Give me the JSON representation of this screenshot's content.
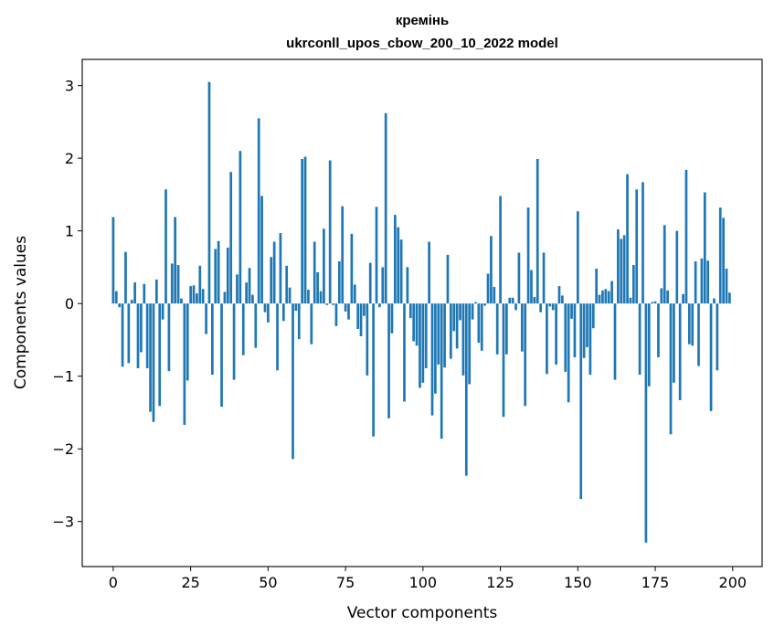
{
  "chart_data": {
    "type": "bar",
    "title": "кремінь",
    "subtitle": "ukrconll_upos_cbow_200_10_2022 model",
    "xlabel": "Vector components",
    "ylabel": "Components values",
    "xlim": [
      -10,
      209.5
    ],
    "ylim": [
      -3.62,
      3.36
    ],
    "xticks": [
      0,
      25,
      50,
      75,
      100,
      125,
      150,
      175,
      200
    ],
    "yticks": [
      -3,
      -2,
      -1,
      0,
      1,
      2,
      3
    ],
    "xtick_labels": [
      "0",
      "25",
      "50",
      "75",
      "100",
      "125",
      "150",
      "175",
      "200"
    ],
    "ytick_labels": [
      "−3",
      "−2",
      "−1",
      "0",
      "1",
      "2",
      "3"
    ],
    "grid": false,
    "legend": "none",
    "bar_color": "#1f77b4",
    "x": [
      0,
      1,
      2,
      3,
      4,
      5,
      6,
      7,
      8,
      9,
      10,
      11,
      12,
      13,
      14,
      15,
      16,
      17,
      18,
      19,
      20,
      21,
      22,
      23,
      24,
      25,
      26,
      27,
      28,
      29,
      30,
      31,
      32,
      33,
      34,
      35,
      36,
      37,
      38,
      39,
      40,
      41,
      42,
      43,
      44,
      45,
      46,
      47,
      48,
      49,
      50,
      51,
      52,
      53,
      54,
      55,
      56,
      57,
      58,
      59,
      60,
      61,
      62,
      63,
      64,
      65,
      66,
      67,
      68,
      69,
      70,
      71,
      72,
      73,
      74,
      75,
      76,
      77,
      78,
      79,
      80,
      81,
      82,
      83,
      84,
      85,
      86,
      87,
      88,
      89,
      90,
      91,
      92,
      93,
      94,
      95,
      96,
      97,
      98,
      99,
      100,
      101,
      102,
      103,
      104,
      105,
      106,
      107,
      108,
      109,
      110,
      111,
      112,
      113,
      114,
      115,
      116,
      117,
      118,
      119,
      120,
      121,
      122,
      123,
      124,
      125,
      126,
      127,
      128,
      129,
      130,
      131,
      132,
      133,
      134,
      135,
      136,
      137,
      138,
      139,
      140,
      141,
      142,
      143,
      144,
      145,
      146,
      147,
      148,
      149,
      150,
      151,
      152,
      153,
      154,
      155,
      156,
      157,
      158,
      159,
      160,
      161,
      162,
      163,
      164,
      165,
      166,
      167,
      168,
      169,
      170,
      171,
      172,
      173,
      174,
      175,
      176,
      177,
      178,
      179,
      180,
      181,
      182,
      183,
      184,
      185,
      186,
      187,
      188,
      189,
      190,
      191,
      192,
      193,
      194,
      195,
      196,
      197,
      198,
      199
    ],
    "values": [
      1.19,
      0.17,
      -0.05,
      -0.87,
      0.71,
      -0.82,
      0.05,
      0.29,
      -0.89,
      -0.67,
      0.27,
      -0.89,
      -1.49,
      -1.63,
      0.33,
      -1.41,
      -0.22,
      1.57,
      -0.93,
      0.55,
      1.19,
      0.53,
      0.07,
      -1.67,
      -1.06,
      0.24,
      0.25,
      0.14,
      0.52,
      0.2,
      -0.42,
      3.05,
      -0.98,
      0.75,
      0.86,
      -1.42,
      0.16,
      0.77,
      1.81,
      -1.05,
      0.4,
      2.1,
      -0.71,
      0.29,
      0.49,
      0.12,
      -0.61,
      2.55,
      1.48,
      -0.12,
      -0.26,
      0.64,
      0.85,
      -0.92,
      0.97,
      -0.24,
      0.52,
      0.22,
      -2.14,
      -0.1,
      -0.49,
      1.99,
      2.02,
      0.19,
      -0.56,
      0.85,
      0.43,
      0.17,
      1.03,
      -0.02,
      1.97,
      -0.02,
      -0.31,
      0.58,
      1.34,
      -0.11,
      -0.22,
      0.96,
      0.26,
      -0.35,
      -0.45,
      -0.17,
      -0.99,
      0.56,
      -1.83,
      1.33,
      -0.05,
      0.5,
      2.62,
      -1.58,
      -0.41,
      1.22,
      1.05,
      0.88,
      -1.35,
      0.5,
      -0.2,
      -0.52,
      -0.58,
      -1.16,
      -1.09,
      -0.89,
      0.85,
      -1.54,
      -1.24,
      -0.84,
      -1.86,
      -0.88,
      0.67,
      -0.76,
      -0.38,
      -0.62,
      -0.23,
      -0.99,
      -2.37,
      -1.11,
      -0.22,
      0.02,
      -0.54,
      -0.65,
      -0.03,
      0.41,
      0.93,
      0.23,
      -0.7,
      1.48,
      -1.56,
      -0.7,
      0.08,
      0.08,
      -0.09,
      0.7,
      -0.66,
      -1.41,
      1.32,
      0.46,
      0.09,
      1.99,
      -0.12,
      0.7,
      -0.97,
      -0.04,
      -0.09,
      -0.84,
      0.24,
      0.11,
      -0.94,
      -1.36,
      -0.21,
      -0.74,
      1.27,
      -2.69,
      -0.75,
      -0.6,
      -0.98,
      -0.34,
      0.48,
      0.12,
      0.18,
      0.2,
      0.17,
      0.31,
      -1.05,
      1.02,
      0.89,
      0.94,
      1.78,
      0.08,
      0.53,
      1.57,
      -0.98,
      1.67,
      -3.29,
      -1.14,
      0.02,
      0.03,
      -0.74,
      0.21,
      1.08,
      0.18,
      -1.8,
      -1.09,
      1.0,
      -1.33,
      0.13,
      1.84,
      -0.56,
      -0.58,
      0.58,
      -0.86,
      0.62,
      1.53,
      0.59,
      -1.48,
      0.07,
      -0.92,
      1.32,
      1.18,
      0.48,
      0.15
    ]
  }
}
